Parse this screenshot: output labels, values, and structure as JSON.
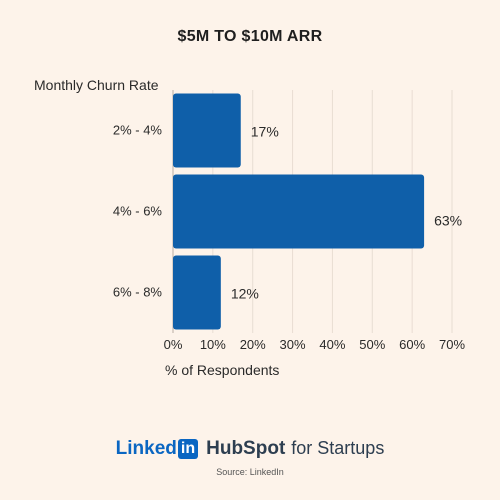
{
  "chart_data": {
    "type": "bar",
    "orientation": "horizontal",
    "title": "$5M TO $10M ARR",
    "ylabel": "Monthly Churn Rate",
    "xlabel": "% of Respondents",
    "categories": [
      "2% - 4%",
      "4% - 6%",
      "6% - 8%"
    ],
    "values": [
      17,
      63,
      12
    ],
    "value_labels": [
      "17%",
      "63%",
      "12%"
    ],
    "xticks": [
      "0%",
      "10%",
      "20%",
      "30%",
      "40%",
      "50%",
      "60%",
      "70%"
    ],
    "xlim": [
      0,
      70
    ],
    "grid": "vertical",
    "bar_color": "#0f5fa9",
    "grid_color": "#e8ddd3"
  },
  "footer": {
    "linkedin_word": "Linked",
    "linkedin_box": "in",
    "hubspot_word": "HubSpot",
    "hubspot_sub": "for Startups",
    "source": "Source: LinkedIn"
  },
  "colors": {
    "background": "#fdf3ea",
    "linkedin_blue": "#0a66c2",
    "hubspot_navy": "#2d3e50"
  }
}
